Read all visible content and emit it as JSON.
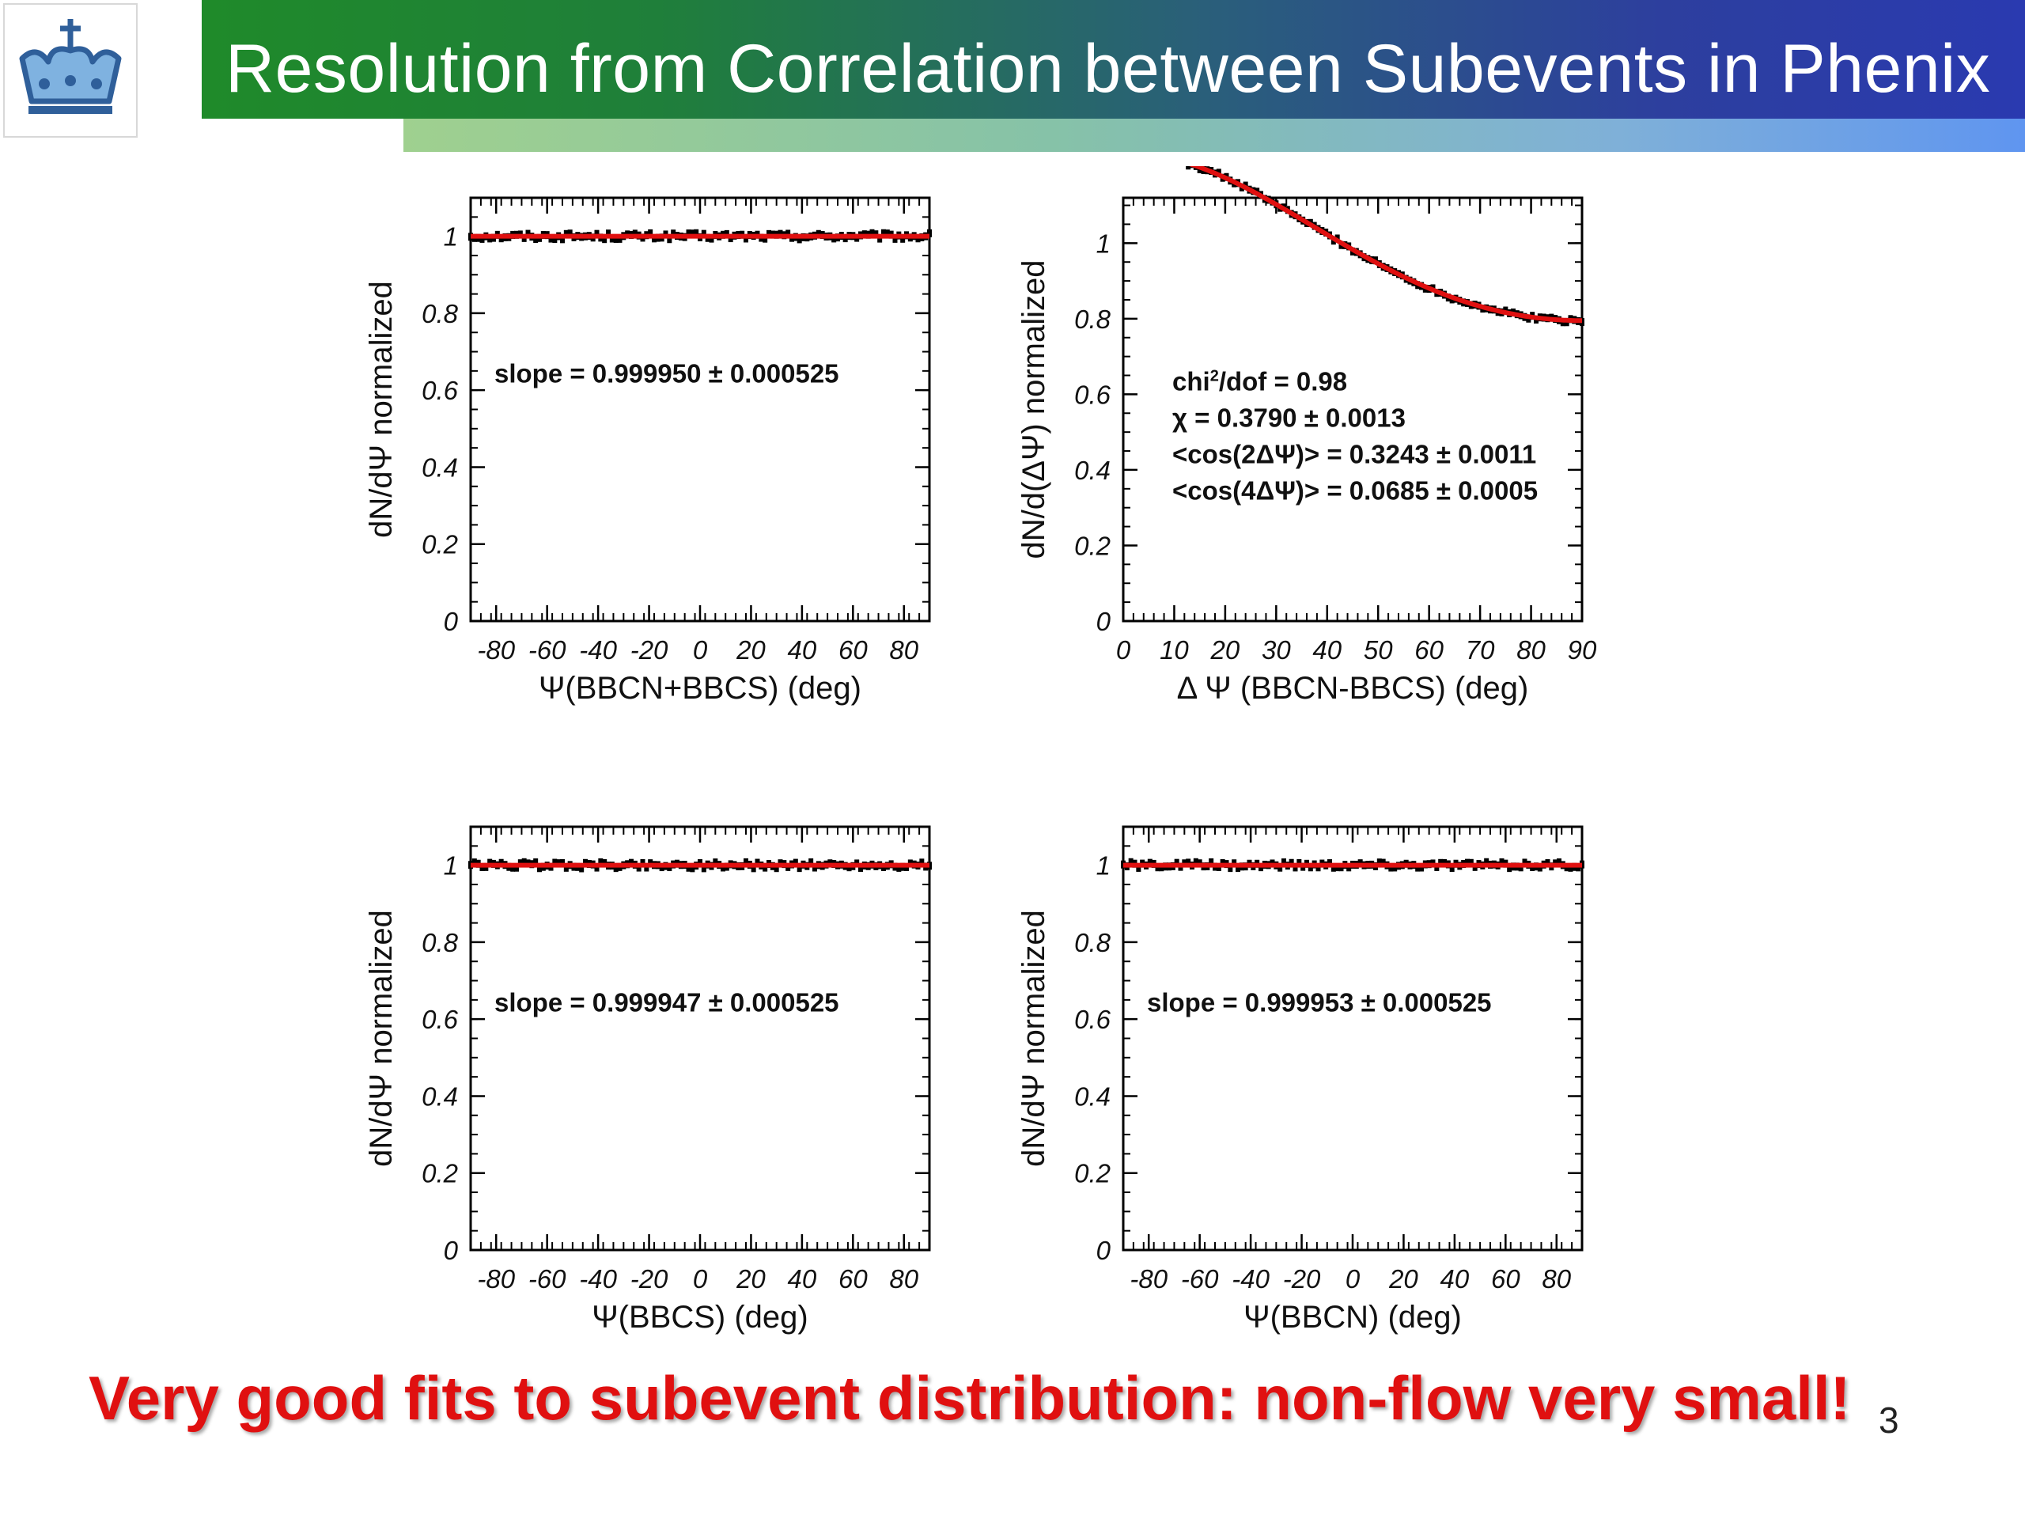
{
  "header": {
    "title": "Resolution from Correlation between Subevents in Phenix"
  },
  "colors": {
    "header_green": "#1f8a2a",
    "header_blue": "#2a3ab0",
    "fit_red": "#e01010",
    "data_black": "#000000"
  },
  "footer": {
    "text": "Very good fits to subevent distribution: non-flow very small!",
    "page_number": "3"
  },
  "logo": {
    "icon": "crown-icon"
  },
  "chart_data": [
    {
      "type": "scatter",
      "xlabel": "Ψ(BBCN+BBCS) (deg)",
      "ylabel": "dN/dΨ normalized",
      "xlim": [
        -90,
        90
      ],
      "ylim": [
        0,
        1.1
      ],
      "x_ticks": [
        -80,
        -60,
        -40,
        -20,
        0,
        20,
        40,
        60,
        80
      ],
      "y_ticks": [
        0,
        0.2,
        0.4,
        0.6,
        0.8,
        1
      ],
      "series": [
        {
          "points": {
            "x_range": [
              -90,
              90
            ],
            "y_center": 1.0,
            "y_spread": 0.008
          }
        }
      ],
      "fit": {
        "form": "flat",
        "y_level": 1.0
      },
      "annotations": [
        "slope = 0.999950 ± 0.000525"
      ]
    },
    {
      "type": "scatter",
      "xlabel": "Δ Ψ (BBCN-BBCS) (deg)",
      "ylabel": "dN/d(ΔΨ) normalized",
      "xlim": [
        0,
        90
      ],
      "ylim": [
        0,
        1.12
      ],
      "x_ticks": [
        0,
        10,
        20,
        30,
        40,
        50,
        60,
        70,
        80,
        90
      ],
      "y_ticks": [
        0,
        0.2,
        0.4,
        0.6,
        0.8,
        1
      ],
      "series": [
        {
          "points": {
            "x_range": [
              0,
              90
            ],
            "y_spread": 0.006
          }
        }
      ],
      "fit": {
        "form": "cosine",
        "a": 1.0,
        "b2": 0.111,
        "b4": 0.0085
      },
      "annotations": [
        "χ = 0.3790 ± 0.0013",
        "<cos(2ΔΨ)> = 0.3243 ± 0.0011",
        "<cos(4ΔΨ)> = 0.0685 ± 0.0005"
      ],
      "chi_text": {
        "pre": "chi",
        "sup": "2",
        "post": "/dof = 0.98"
      }
    },
    {
      "type": "scatter",
      "xlabel": "Ψ(BBCS) (deg)",
      "ylabel": "dN/dΨ normalized",
      "xlim": [
        -90,
        90
      ],
      "ylim": [
        0,
        1.1
      ],
      "x_ticks": [
        -80,
        -60,
        -40,
        -20,
        0,
        20,
        40,
        60,
        80
      ],
      "y_ticks": [
        0,
        0.2,
        0.4,
        0.6,
        0.8,
        1
      ],
      "series": [
        {
          "points": {
            "x_range": [
              -90,
              90
            ],
            "y_center": 1.0,
            "y_spread": 0.008
          }
        }
      ],
      "fit": {
        "form": "flat",
        "y_level": 1.0
      },
      "annotations": [
        "slope = 0.999947 ± 0.000525"
      ]
    },
    {
      "type": "scatter",
      "xlabel": "Ψ(BBCN) (deg)",
      "ylabel": "dN/dΨ normalized",
      "xlim": [
        -90,
        90
      ],
      "ylim": [
        0,
        1.1
      ],
      "x_ticks": [
        -80,
        -60,
        -40,
        -20,
        0,
        20,
        40,
        60,
        80
      ],
      "y_ticks": [
        0,
        0.2,
        0.4,
        0.6,
        0.8,
        1
      ],
      "series": [
        {
          "points": {
            "x_range": [
              -90,
              90
            ],
            "y_center": 1.0,
            "y_spread": 0.008
          }
        }
      ],
      "fit": {
        "form": "flat",
        "y_level": 1.0
      },
      "annotations": [
        "slope = 0.999953 ± 0.000525"
      ]
    }
  ]
}
